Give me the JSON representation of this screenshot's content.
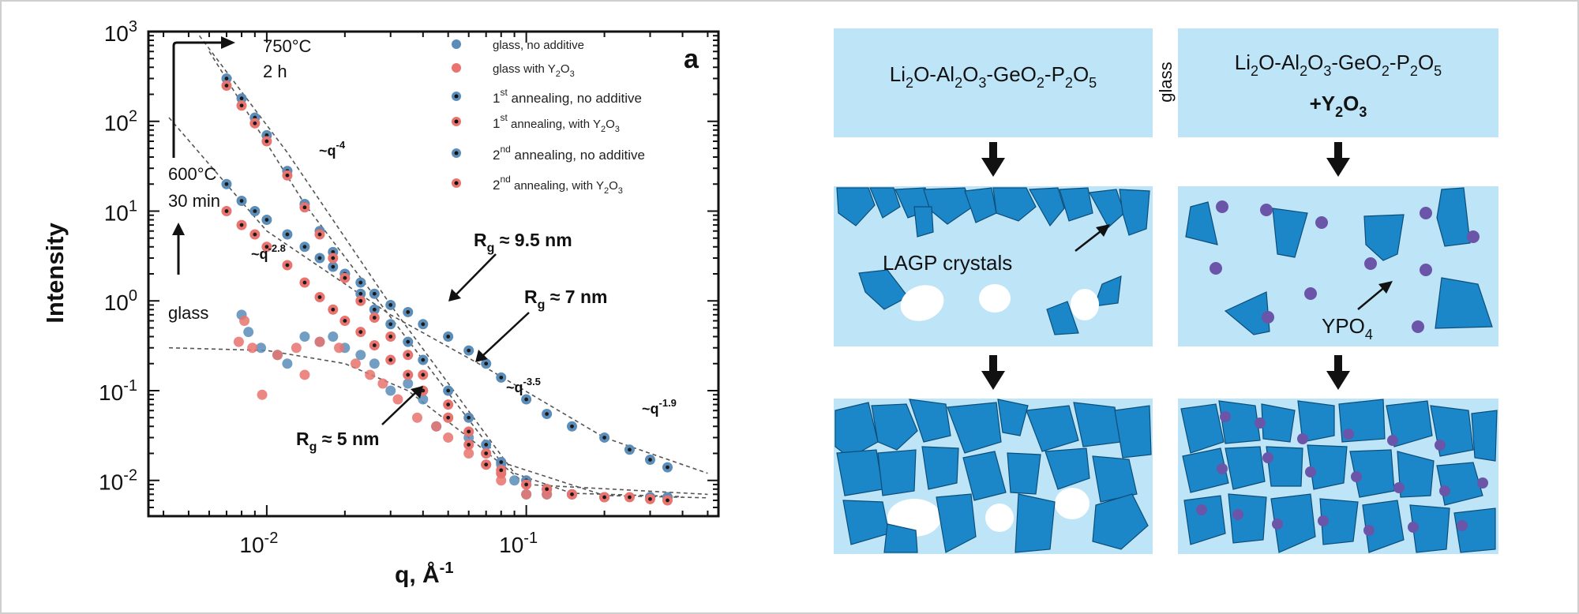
{
  "panel_a": {
    "panel_letter": "a",
    "y_axis_label": "Intensity",
    "x_axis_label": "q, Å",
    "x_axis_label_exp": "-1",
    "annot_750_temp": "750°C",
    "annot_750_time": "2 h",
    "annot_600_temp": "600°C",
    "annot_600_time": "30 min",
    "annot_glass": "glass",
    "slope_q4": {
      "base": "~q",
      "exp": "-4"
    },
    "slope_q28": {
      "base": "~q",
      "exp": "-2.8"
    },
    "slope_q35": {
      "base": "~q",
      "exp": "-3.5"
    },
    "slope_q19": {
      "base": "~q",
      "exp": "-1.9"
    },
    "rg_95": {
      "r": "R",
      "sub": "g",
      "val": " ≈ 9.5 nm"
    },
    "rg_7": {
      "r": "R",
      "sub": "g",
      "val": " ≈ 7 nm"
    },
    "rg_5": {
      "r": "R",
      "sub": "g",
      "val": " ≈ 5 nm"
    },
    "legend": [
      {
        "pre": "glass, no additive",
        "sup": "",
        "post": "",
        "y2o3": false,
        "color": "#5b8db8",
        "ring": false
      },
      {
        "pre": "glass with ",
        "sup": "",
        "post": "",
        "y2o3": true,
        "color": "#e8736f",
        "ring": false
      },
      {
        "pre": "",
        "sup": "st",
        "post": " annealing, no additive",
        "num": "1",
        "y2o3": false,
        "color": "#5b8db8",
        "ring": true
      },
      {
        "pre": "",
        "sup": "st",
        "post": " annealing, with ",
        "num": "1",
        "y2o3": true,
        "color": "#e8736f",
        "ring": true
      },
      {
        "pre": "",
        "sup": "nd",
        "post": " annealing, no additive",
        "num": "2",
        "y2o3": false,
        "color": "#5b8db8",
        "ring": true
      },
      {
        "pre": "",
        "sup": "nd",
        "post": " annealing, with ",
        "num": "2",
        "y2o3": true,
        "color": "#e8736f",
        "ring": true
      }
    ]
  },
  "panel_b": {
    "left_title": "Li2O-Al2O3-GeO2-P2O5",
    "right_title": "Li2O-Al2O3-GeO2-P2O5",
    "right_title_line2": "+Y2O3",
    "glass_label": "glass",
    "lagp_label": "LAGP crystals",
    "ypo4_label": "YPO4"
  },
  "colors": {
    "blue_series": "#5b8db8",
    "red_series": "#e8736f",
    "box_fill": "#bde5f7",
    "crystal_fill": "#1b87c8",
    "yttrium_dot": "#6b55a8"
  },
  "chart_data": {
    "type": "scatter",
    "x_scale": "log",
    "y_scale": "log",
    "xlim": [
      0.0035,
      0.55
    ],
    "ylim": [
      0.004,
      1000
    ],
    "xlabel": "q, Å-1",
    "ylabel": "Intensity",
    "x_ticks": [
      "10-2",
      "10-1"
    ],
    "y_ticks": [
      "10-2",
      "10-1",
      "100",
      "101",
      "102",
      "103"
    ],
    "legend_position": "top-right",
    "series": [
      {
        "name": "glass, no additive",
        "x": [
          0.008,
          0.0085,
          0.0095,
          0.011,
          0.012,
          0.014,
          0.016,
          0.018,
          0.02,
          0.023,
          0.026,
          0.03,
          0.035,
          0.04,
          0.045,
          0.05,
          0.06,
          0.07,
          0.08,
          0.09,
          0.1,
          0.12,
          0.15
        ],
        "y": [
          0.7,
          0.45,
          0.3,
          0.25,
          0.2,
          0.4,
          0.35,
          0.4,
          0.3,
          0.25,
          0.2,
          0.1,
          0.12,
          0.08,
          0.04,
          0.05,
          0.03,
          0.02,
          0.015,
          0.01,
          0.007,
          0.007,
          0.007
        ]
      },
      {
        "name": "glass with Y2O3",
        "x": [
          0.0078,
          0.0082,
          0.0088,
          0.0096,
          0.011,
          0.013,
          0.014,
          0.016,
          0.019,
          0.022,
          0.025,
          0.028,
          0.032,
          0.038,
          0.045,
          0.05,
          0.06,
          0.07,
          0.08,
          0.1,
          0.12,
          0.15
        ],
        "y": [
          0.35,
          0.6,
          0.3,
          0.09,
          0.25,
          0.3,
          0.15,
          0.35,
          0.3,
          0.2,
          0.15,
          0.12,
          0.08,
          0.05,
          0.04,
          0.03,
          0.02,
          0.015,
          0.01,
          0.007,
          0.007,
          0.007
        ]
      },
      {
        "name": "1st annealing, no additive",
        "x": [
          0.007,
          0.008,
          0.009,
          0.01,
          0.012,
          0.014,
          0.016,
          0.018,
          0.02,
          0.023,
          0.026,
          0.03,
          0.035,
          0.04,
          0.05,
          0.06,
          0.07,
          0.08,
          0.1,
          0.12,
          0.15,
          0.2,
          0.25,
          0.3,
          0.35
        ],
        "y": [
          20,
          13,
          10,
          8,
          5.5,
          4,
          3,
          2.4,
          2,
          1.6,
          1.2,
          0.9,
          0.75,
          0.55,
          0.4,
          0.28,
          0.2,
          0.14,
          0.08,
          0.055,
          0.04,
          0.03,
          0.022,
          0.017,
          0.014
        ]
      },
      {
        "name": "1st annealing, with Y2O3",
        "x": [
          0.007,
          0.008,
          0.009,
          0.01,
          0.012,
          0.014,
          0.016,
          0.018,
          0.02,
          0.023,
          0.026,
          0.03,
          0.035,
          0.04,
          0.05,
          0.06,
          0.07,
          0.08,
          0.1,
          0.12,
          0.15,
          0.2,
          0.25,
          0.3,
          0.35
        ],
        "y": [
          10,
          7,
          5.5,
          4,
          2.5,
          1.6,
          1.1,
          0.8,
          0.6,
          0.45,
          0.32,
          0.22,
          0.15,
          0.1,
          0.05,
          0.025,
          0.015,
          0.012,
          0.009,
          0.008,
          0.007,
          0.0065,
          0.0065,
          0.0065,
          0.0065
        ]
      },
      {
        "name": "2nd annealing, no additive",
        "x": [
          0.007,
          0.008,
          0.009,
          0.01,
          0.012,
          0.014,
          0.016,
          0.018,
          0.02,
          0.023,
          0.026,
          0.03,
          0.035,
          0.04,
          0.05,
          0.06,
          0.07,
          0.08,
          0.1,
          0.12,
          0.15,
          0.2,
          0.3,
          0.35
        ],
        "y": [
          300,
          180,
          110,
          70,
          28,
          12,
          6,
          3.5,
          2,
          1.2,
          0.8,
          0.55,
          0.35,
          0.22,
          0.1,
          0.05,
          0.025,
          0.016,
          0.01,
          0.008,
          0.007,
          0.0065,
          0.0065,
          0.0065
        ]
      },
      {
        "name": "2nd annealing, with Y2O3",
        "x": [
          0.007,
          0.008,
          0.009,
          0.01,
          0.012,
          0.014,
          0.016,
          0.018,
          0.02,
          0.023,
          0.026,
          0.03,
          0.035,
          0.04,
          0.05,
          0.06,
          0.07,
          0.08,
          0.1,
          0.12,
          0.15,
          0.2,
          0.3,
          0.35
        ],
        "y": [
          250,
          150,
          95,
          60,
          25,
          11,
          5.5,
          3,
          1.8,
          1,
          0.65,
          0.4,
          0.25,
          0.15,
          0.07,
          0.035,
          0.02,
          0.013,
          0.009,
          0.008,
          0.007,
          0.0065,
          0.0062,
          0.006
        ]
      }
    ]
  }
}
